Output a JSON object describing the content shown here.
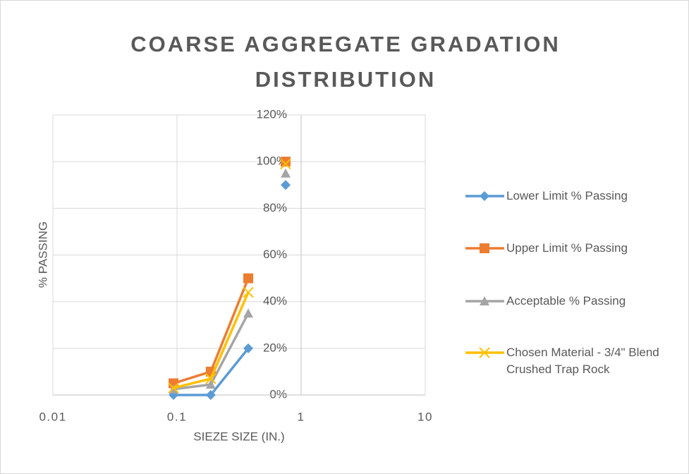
{
  "chart_data": {
    "type": "line",
    "title": "COARSE AGGREGATE GRADATION DISTRIBUTION",
    "x_label": "SIEZE SIZE (IN.)",
    "y_label": "% PASSING",
    "x": [
      0.0937,
      0.187,
      0.375,
      0.5,
      0.75
    ],
    "series": [
      {
        "name": "Lower Limit % Passing",
        "color": "#5b9bd5",
        "marker": "diamond",
        "values": [
          0,
          0,
          20,
          null,
          90
        ]
      },
      {
        "name": "Upper Limit % Passing",
        "color": "#ed7d31",
        "marker": "square",
        "values": [
          5,
          10,
          50,
          null,
          100
        ]
      },
      {
        "name": "Acceptable % Passing",
        "color": "#a5a5a5",
        "marker": "triangle",
        "values": [
          2.5,
          4.5,
          35,
          null,
          95
        ]
      },
      {
        "name": "Chosen Material - 3/4\" Blend Crushed Trap Rock",
        "color": "#ffc000",
        "marker": "x",
        "values": [
          3,
          7,
          44,
          null,
          99
        ]
      }
    ],
    "x_log": true,
    "xlim": [
      0.01,
      10
    ],
    "xticks": [
      0.01,
      0.1,
      1,
      10
    ],
    "ylim": [
      0,
      120
    ],
    "yticks": [
      {
        "value": 0,
        "label": "0%"
      },
      {
        "value": 20,
        "label": "20%"
      },
      {
        "value": 40,
        "label": "40%"
      },
      {
        "value": 60,
        "label": "60%"
      },
      {
        "value": 80,
        "label": "80%"
      },
      {
        "value": 100,
        "label": "100%"
      },
      {
        "value": 120,
        "label": "120%"
      }
    ],
    "y_axis_crosses_at_x": 1,
    "grid": true,
    "legend": "right"
  }
}
